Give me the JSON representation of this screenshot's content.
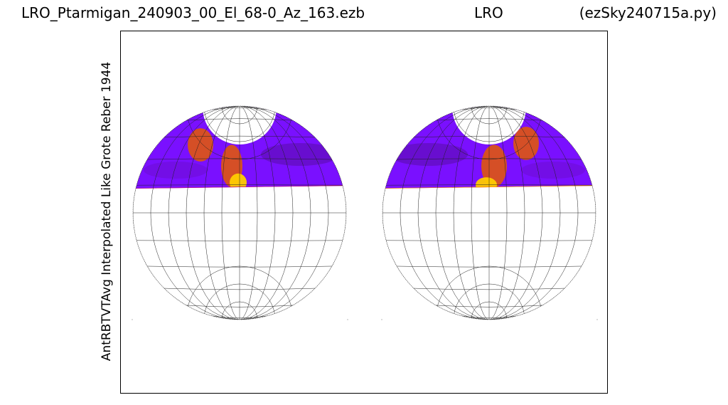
{
  "header": {
    "left": "LRO_Ptarmigan_240903_00_El_68-0_Az_163.ezb",
    "center": "LRO",
    "right": "(ezSky240715a.py)"
  },
  "chart_data": {
    "type": "heatmap",
    "title": "LRO_Ptarmigan_240903_00_El_68-0_Az_163.ezb",
    "ylabel": "AntRBTVTAvg Interpolated Like Grote Reber 1944",
    "xlabel": "",
    "projection": "two hemispheres",
    "colormap": "gnuplot (black-purple-red-orange-yellow)",
    "grid": true,
    "hemispheres": [
      {
        "name": "",
        "coverage": "upper cap only",
        "colors": {
          "low": "#7a10ff",
          "mid": "#a011d0",
          "high": "#e55a00",
          "peak": "#ffcc00"
        }
      },
      {
        "name": "",
        "coverage": "upper cap only",
        "colors": {
          "low": "#7a10ff",
          "mid": "#a011d0",
          "high": "#e55a00",
          "peak": "#ffcc00"
        }
      }
    ]
  }
}
